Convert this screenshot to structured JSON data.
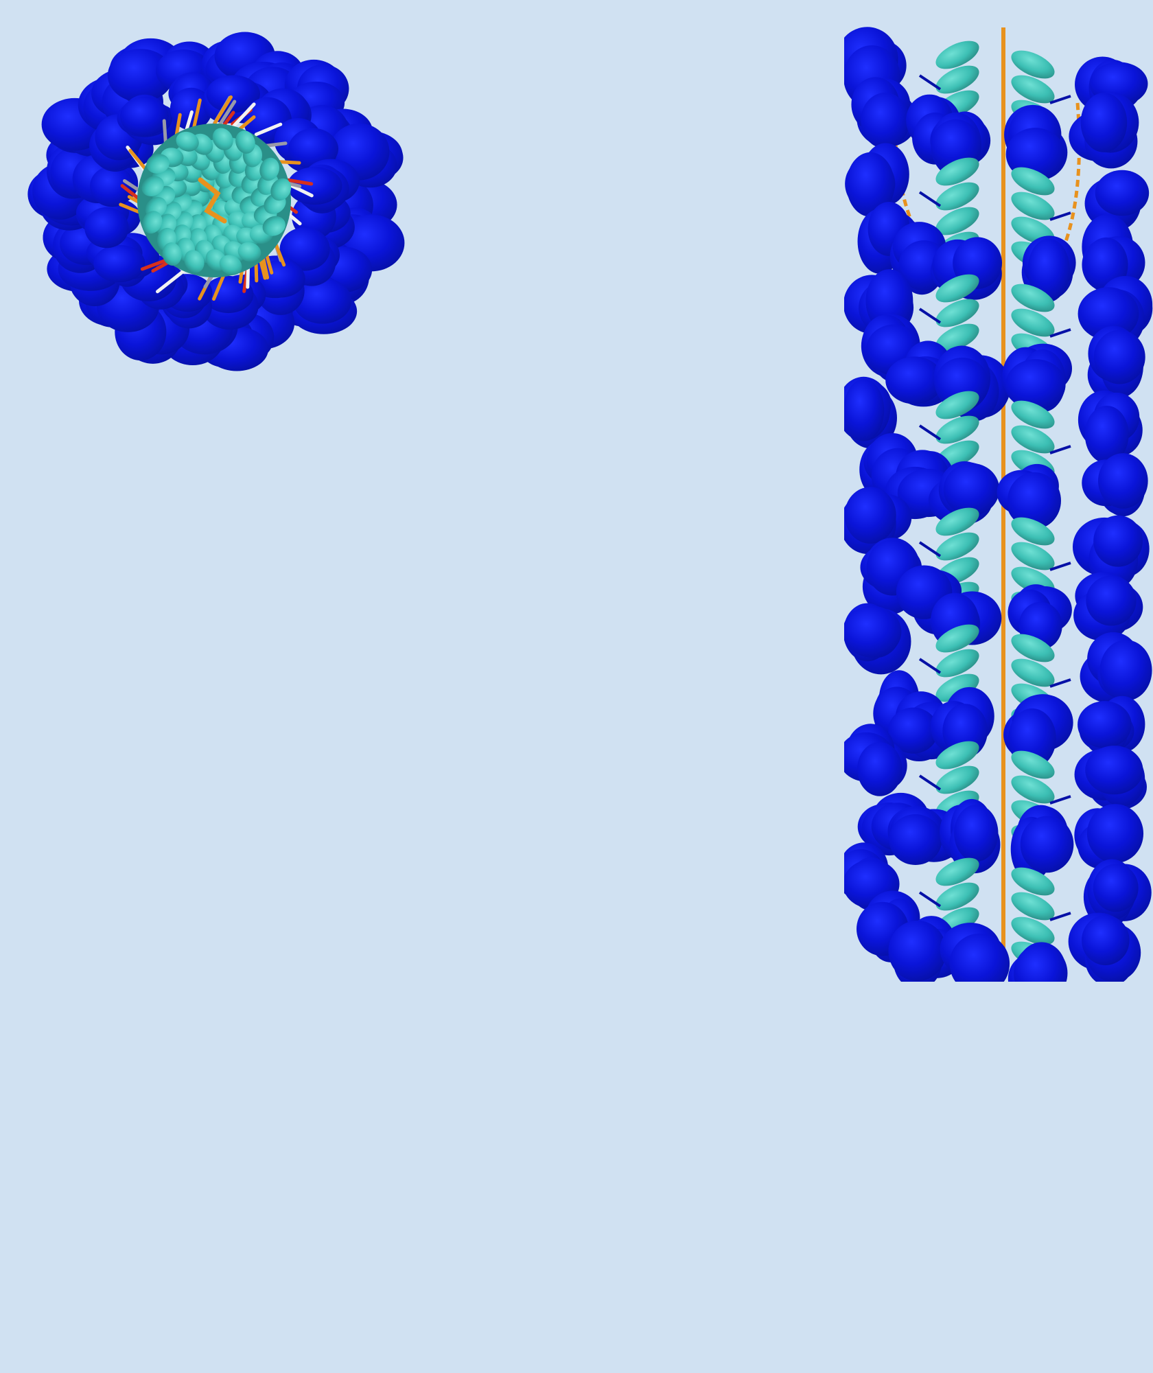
{
  "scene": {
    "background_color": "#d0e1f2",
    "description_panels": [
      "top-view",
      "side-view"
    ]
  },
  "colors": {
    "headgroup": "#0a14d8",
    "headgroup_dark": "#0610a6",
    "headgroup_highlight": "#1f2fff",
    "core": "#3cbfb4",
    "core_dark": "#2a8f88",
    "core_highlight": "#6fe0d4",
    "backbone": "#e8921e",
    "backbone_dark": "#b86a10",
    "bond_red": "#d8301c",
    "bond_grey": "#9a9aa8",
    "bond_white": "#f2f2f2"
  },
  "assembly": {
    "top_view_rings": 3,
    "side_view_layers": 8
  }
}
